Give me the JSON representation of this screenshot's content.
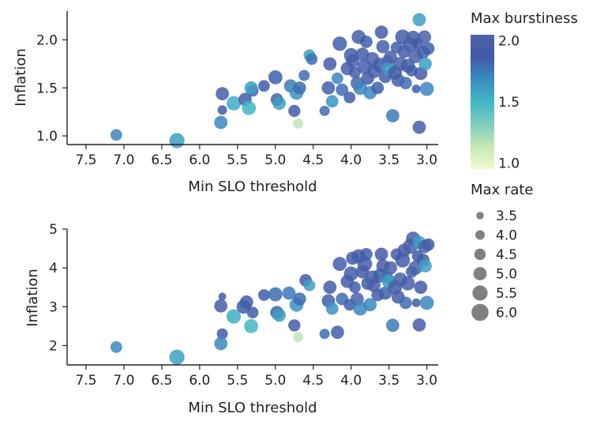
{
  "chart_data": [
    {
      "type": "scatter",
      "panel": "top",
      "xlabel": "Min SLO threshold",
      "ylabel": "Inflation",
      "xlim": [
        7.75,
        2.85
      ],
      "ylim": [
        0.91,
        2.3
      ],
      "xticks": [
        7.5,
        7.0,
        6.5,
        6.0,
        5.5,
        5.0,
        4.5,
        4.0,
        3.5,
        3.0
      ],
      "xtick_labels": [
        "7.5",
        "7.0",
        "6.5",
        "6.0",
        "5.5",
        "5.0",
        "4.5",
        "4.0",
        "3.5",
        "3.0"
      ],
      "yticks": [
        1.0,
        1.5,
        2.0
      ],
      "ytick_labels": [
        "1.0",
        "1.5",
        "2.0"
      ],
      "columns": [
        "x",
        "y",
        "burstiness",
        "rate"
      ],
      "points": [
        [
          7.1,
          1.01,
          1.7,
          4.6
        ],
        [
          6.3,
          0.95,
          1.6,
          5.5
        ],
        [
          5.7,
          1.44,
          1.95,
          5.0
        ],
        [
          5.7,
          1.27,
          1.9,
          4.0
        ],
        [
          5.72,
          1.14,
          1.7,
          5.0
        ],
        [
          5.55,
          1.34,
          1.55,
          5.3
        ],
        [
          5.4,
          1.38,
          1.9,
          5.0
        ],
        [
          5.35,
          1.29,
          1.5,
          5.2
        ],
        [
          5.3,
          1.47,
          1.9,
          4.6
        ],
        [
          5.32,
          1.5,
          1.6,
          5.0
        ],
        [
          5.15,
          1.52,
          1.9,
          4.6
        ],
        [
          5.0,
          1.61,
          1.85,
          5.2
        ],
        [
          4.98,
          1.38,
          1.95,
          4.8
        ],
        [
          4.95,
          1.34,
          1.6,
          5.0
        ],
        [
          4.8,
          1.52,
          1.75,
          5.0
        ],
        [
          4.75,
          1.26,
          1.9,
          4.7
        ],
        [
          4.7,
          1.13,
          1.15,
          4.2
        ],
        [
          4.72,
          1.45,
          1.65,
          5.2
        ],
        [
          4.68,
          1.5,
          1.8,
          4.9
        ],
        [
          4.62,
          1.63,
          1.8,
          4.4
        ],
        [
          4.55,
          1.84,
          1.6,
          4.6
        ],
        [
          4.52,
          1.8,
          1.8,
          4.6
        ],
        [
          4.35,
          1.26,
          1.8,
          4.2
        ],
        [
          4.3,
          1.5,
          1.85,
          5.0
        ],
        [
          4.28,
          1.75,
          1.9,
          5.0
        ],
        [
          4.25,
          1.36,
          1.65,
          4.8
        ],
        [
          4.18,
          1.6,
          1.7,
          4.6
        ],
        [
          4.15,
          1.96,
          1.85,
          5.3
        ],
        [
          4.12,
          1.48,
          1.8,
          4.8
        ],
        [
          4.05,
          1.7,
          1.95,
          5.0
        ],
        [
          4.02,
          1.4,
          1.9,
          4.6
        ],
        [
          4.0,
          1.84,
          1.85,
          5.3
        ],
        [
          3.98,
          1.78,
          1.95,
          5.0
        ],
        [
          3.95,
          1.66,
          1.85,
          4.6
        ],
        [
          3.92,
          1.55,
          2.0,
          5.0
        ],
        [
          3.9,
          2.03,
          1.95,
          5.2
        ],
        [
          3.88,
          1.5,
          1.7,
          5.2
        ],
        [
          3.85,
          1.85,
          1.9,
          5.0
        ],
        [
          3.82,
          1.72,
          1.95,
          5.4
        ],
        [
          3.8,
          1.98,
          1.85,
          4.8
        ],
        [
          3.78,
          1.6,
          1.9,
          4.9
        ],
        [
          3.75,
          1.45,
          1.7,
          5.0
        ],
        [
          3.72,
          1.8,
          2.0,
          5.2
        ],
        [
          3.7,
          1.67,
          1.95,
          5.0
        ],
        [
          3.65,
          1.5,
          1.85,
          4.8
        ],
        [
          3.62,
          1.74,
          1.9,
          5.2
        ],
        [
          3.6,
          2.08,
          1.9,
          5.0
        ],
        [
          3.58,
          1.93,
          1.95,
          5.0
        ],
        [
          3.55,
          1.62,
          1.85,
          5.0
        ],
        [
          3.52,
          1.78,
          1.8,
          4.6
        ],
        [
          3.5,
          1.7,
          1.6,
          5.2
        ],
        [
          3.48,
          1.82,
          2.0,
          5.0
        ],
        [
          3.45,
          1.21,
          1.75,
          5.0
        ],
        [
          3.42,
          1.66,
          1.9,
          5.2
        ],
        [
          3.4,
          1.92,
          1.85,
          4.6
        ],
        [
          3.38,
          1.58,
          1.95,
          5.0
        ],
        [
          3.35,
          1.75,
          2.0,
          5.2
        ],
        [
          3.32,
          2.03,
          1.9,
          5.4
        ],
        [
          3.3,
          1.88,
          1.95,
          5.0
        ],
        [
          3.28,
          1.55,
          1.8,
          4.8
        ],
        [
          3.25,
          1.73,
          1.95,
          5.2
        ],
        [
          3.22,
          1.95,
          2.0,
          5.4
        ],
        [
          3.2,
          1.68,
          1.85,
          4.6
        ],
        [
          3.18,
          2.02,
          1.95,
          5.3
        ],
        [
          3.15,
          1.83,
          2.0,
          5.2
        ],
        [
          3.14,
          1.49,
          1.9,
          3.8
        ],
        [
          3.12,
          1.96,
          1.9,
          4.6
        ],
        [
          3.1,
          1.09,
          1.95,
          5.0
        ],
        [
          3.1,
          2.21,
          1.6,
          5.0
        ],
        [
          3.08,
          1.65,
          1.9,
          5.0
        ],
        [
          3.05,
          1.87,
          1.85,
          4.9
        ],
        [
          3.03,
          2.03,
          2.0,
          5.0
        ],
        [
          3.02,
          1.75,
          1.6,
          4.9
        ],
        [
          3.0,
          1.49,
          1.7,
          5.2
        ],
        [
          2.98,
          1.91,
          1.85,
          4.8
        ]
      ]
    },
    {
      "type": "scatter",
      "panel": "bottom",
      "xlabel": "Min SLO threshold",
      "ylabel": "Inflation",
      "xlim": [
        7.75,
        2.85
      ],
      "ylim": [
        1.5,
        5.0
      ],
      "xticks": [
        7.5,
        7.0,
        6.5,
        6.0,
        5.5,
        5.0,
        4.5,
        4.0,
        3.5,
        3.0
      ],
      "xtick_labels": [
        "7.5",
        "7.0",
        "6.5",
        "6.0",
        "5.5",
        "5.0",
        "4.5",
        "4.0",
        "3.5",
        "3.0"
      ],
      "yticks": [
        2,
        3,
        4,
        5
      ],
      "ytick_labels": [
        "2",
        "3",
        "4",
        "5"
      ],
      "columns": [
        "x",
        "y",
        "burstiness",
        "rate"
      ],
      "points": [
        [
          7.1,
          1.96,
          1.7,
          4.6
        ],
        [
          6.3,
          1.7,
          1.6,
          5.5
        ],
        [
          5.72,
          3.02,
          1.95,
          5.0
        ],
        [
          5.7,
          3.26,
          1.9,
          3.6
        ],
        [
          5.7,
          2.3,
          1.9,
          4.4
        ],
        [
          5.72,
          2.05,
          1.7,
          5.0
        ],
        [
          5.55,
          2.75,
          1.55,
          5.3
        ],
        [
          5.42,
          3.0,
          1.9,
          5.2
        ],
        [
          5.38,
          3.12,
          1.85,
          5.0
        ],
        [
          5.32,
          2.5,
          1.5,
          5.2
        ],
        [
          5.3,
          2.85,
          1.9,
          4.6
        ],
        [
          5.15,
          3.3,
          1.85,
          4.6
        ],
        [
          5.0,
          3.32,
          1.8,
          5.2
        ],
        [
          4.98,
          2.85,
          1.95,
          5.0
        ],
        [
          4.95,
          2.78,
          1.6,
          5.0
        ],
        [
          4.82,
          3.35,
          1.75,
          5.0
        ],
        [
          4.75,
          2.52,
          1.9,
          4.7
        ],
        [
          4.7,
          2.22,
          1.15,
          4.2
        ],
        [
          4.72,
          3.05,
          1.65,
          5.2
        ],
        [
          4.68,
          3.2,
          1.8,
          4.9
        ],
        [
          4.6,
          3.68,
          1.9,
          4.8
        ],
        [
          4.55,
          3.55,
          1.6,
          4.6
        ],
        [
          4.35,
          2.3,
          1.8,
          4.2
        ],
        [
          4.3,
          3.15,
          1.85,
          5.0
        ],
        [
          4.28,
          3.5,
          1.9,
          5.0
        ],
        [
          4.25,
          2.95,
          1.65,
          4.8
        ],
        [
          4.18,
          2.34,
          1.85,
          5.0
        ],
        [
          4.15,
          4.1,
          1.85,
          5.2
        ],
        [
          4.12,
          3.2,
          1.8,
          4.8
        ],
        [
          4.05,
          3.65,
          1.95,
          5.0
        ],
        [
          4.02,
          3.05,
          1.9,
          4.6
        ],
        [
          4.0,
          3.85,
          1.85,
          5.3
        ],
        [
          3.98,
          4.25,
          1.95,
          5.0
        ],
        [
          3.95,
          3.5,
          1.85,
          4.6
        ],
        [
          3.92,
          3.2,
          2.0,
          5.0
        ],
        [
          3.9,
          4.3,
          1.95,
          5.2
        ],
        [
          3.88,
          2.95,
          1.7,
          5.2
        ],
        [
          3.85,
          3.9,
          1.9,
          5.0
        ],
        [
          3.82,
          4.1,
          1.95,
          5.4
        ],
        [
          3.8,
          4.35,
          1.85,
          4.8
        ],
        [
          3.78,
          3.6,
          1.9,
          4.9
        ],
        [
          3.75,
          3.05,
          1.7,
          5.0
        ],
        [
          3.72,
          3.75,
          2.0,
          5.2
        ],
        [
          3.7,
          3.55,
          1.95,
          5.0
        ],
        [
          3.65,
          3.3,
          1.85,
          4.8
        ],
        [
          3.62,
          3.8,
          1.9,
          5.2
        ],
        [
          3.6,
          4.35,
          1.9,
          5.0
        ],
        [
          3.58,
          4.05,
          1.95,
          5.0
        ],
        [
          3.55,
          3.35,
          1.85,
          5.0
        ],
        [
          3.52,
          3.75,
          1.8,
          4.6
        ],
        [
          3.5,
          3.65,
          1.6,
          5.2
        ],
        [
          3.48,
          4.0,
          2.0,
          5.0
        ],
        [
          3.45,
          2.52,
          1.75,
          5.0
        ],
        [
          3.42,
          3.5,
          1.9,
          5.2
        ],
        [
          3.4,
          4.35,
          1.85,
          4.6
        ],
        [
          3.38,
          3.25,
          1.95,
          5.0
        ],
        [
          3.35,
          3.7,
          2.0,
          5.2
        ],
        [
          3.32,
          4.2,
          1.9,
          5.4
        ],
        [
          3.3,
          4.45,
          1.95,
          5.0
        ],
        [
          3.28,
          3.1,
          1.8,
          4.8
        ],
        [
          3.25,
          3.6,
          1.95,
          5.2
        ],
        [
          3.22,
          4.55,
          2.0,
          5.4
        ],
        [
          3.2,
          3.9,
          1.85,
          4.6
        ],
        [
          3.18,
          4.75,
          1.95,
          5.3
        ],
        [
          3.15,
          4.0,
          2.0,
          5.2
        ],
        [
          3.14,
          3.1,
          1.9,
          3.8
        ],
        [
          3.12,
          4.3,
          1.9,
          4.6
        ],
        [
          3.1,
          2.53,
          1.95,
          5.0
        ],
        [
          3.1,
          4.65,
          1.6,
          5.0
        ],
        [
          3.08,
          3.5,
          1.9,
          5.0
        ],
        [
          3.05,
          4.2,
          1.85,
          4.9
        ],
        [
          3.03,
          4.55,
          2.0,
          5.0
        ],
        [
          3.02,
          4.05,
          1.6,
          4.9
        ],
        [
          3.0,
          3.1,
          1.7,
          5.2
        ],
        [
          2.98,
          4.6,
          1.85,
          4.8
        ]
      ]
    }
  ],
  "legend": {
    "colorbar": {
      "title": "Max burstiness",
      "ticks": [
        1.0,
        1.5,
        2.0
      ],
      "tick_labels": [
        "1.0",
        "1.5",
        "2.0"
      ],
      "range": [
        0.95,
        2.05
      ],
      "colors": [
        "#f2f9d1",
        "#c6e8b3",
        "#7fcdbb",
        "#41b6c4",
        "#3a8cc0",
        "#3f5aa8",
        "#5063a8"
      ]
    },
    "size": {
      "title": "Max rate",
      "values": [
        3.5,
        4.0,
        4.5,
        5.0,
        5.5,
        6.0
      ],
      "labels": [
        "3.5",
        "4.0",
        "4.5",
        "5.0",
        "5.5",
        "6.0"
      ],
      "color": "#808080"
    }
  }
}
